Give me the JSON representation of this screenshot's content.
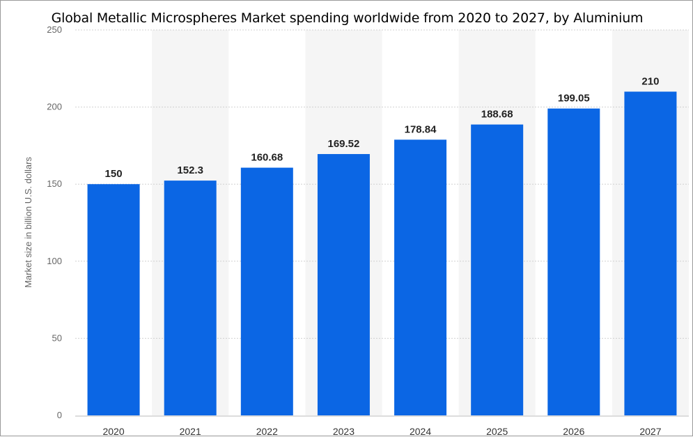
{
  "chart_data": {
    "type": "bar",
    "title": "Global Metallic Microspheres Market spending worldwide from 2020 to 2027, by Aluminium",
    "xlabel": "",
    "ylabel": "Market size in billion U.S. dollars",
    "categories": [
      "2020",
      "2021",
      "2022",
      "2023",
      "2024",
      "2025",
      "2026",
      "2027"
    ],
    "values": [
      150,
      152.3,
      160.68,
      169.52,
      178.84,
      188.68,
      199.05,
      210
    ],
    "data_labels": [
      "150",
      "152.3",
      "160.68",
      "169.52",
      "178.84",
      "188.68",
      "199.05",
      "210"
    ],
    "yticks": [
      "0",
      "50",
      "100",
      "150",
      "200",
      "250"
    ],
    "ylim": [
      0,
      250
    ],
    "grid": true,
    "colors": {
      "bar": "#0b66e4",
      "band": "#f5f5f5",
      "grid": "#d0d0d0"
    }
  }
}
